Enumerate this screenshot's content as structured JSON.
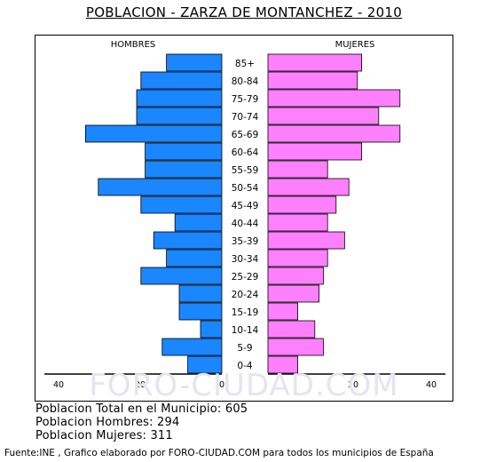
{
  "title": "POBLACION - ZARZA DE MONTANCHEZ - 2010",
  "watermark": "FORO-CIUDAD.COM",
  "stats": {
    "total": "Poblacion Total en el Municipio: 605",
    "hombres": "Poblacion Hombres: 294",
    "mujeres": "Poblacion Mujeres: 311"
  },
  "footer": "Fuente:INE , Grafico elaborado por FORO-CIUDAD.COM para todos los municipios de España",
  "colors": {
    "male": "#1a86ff",
    "female": "#ff80ff",
    "border": "#000000"
  },
  "chart_data": {
    "type": "bar",
    "orientation": "horizontal-pyramid",
    "categories": [
      "85+",
      "80-84",
      "75-79",
      "70-74",
      "65-69",
      "60-64",
      "55-59",
      "50-54",
      "45-49",
      "40-44",
      "35-39",
      "30-34",
      "25-29",
      "20-24",
      "15-19",
      "10-14",
      "5-9",
      "0-4"
    ],
    "series": [
      {
        "name": "HOMBRES",
        "values": [
          13,
          19,
          20,
          20,
          32,
          18,
          18,
          29,
          19,
          11,
          16,
          13,
          19,
          10,
          10,
          5,
          14,
          8
        ]
      },
      {
        "name": "MUJERES",
        "values": [
          22,
          21,
          31,
          26,
          31,
          22,
          14,
          19,
          16,
          14,
          18,
          14,
          13,
          12,
          7,
          11,
          13,
          7
        ]
      }
    ],
    "xlim": [
      0,
      40
    ],
    "x_ticks": [
      "40",
      "20",
      "0",
      "20",
      "40"
    ]
  }
}
